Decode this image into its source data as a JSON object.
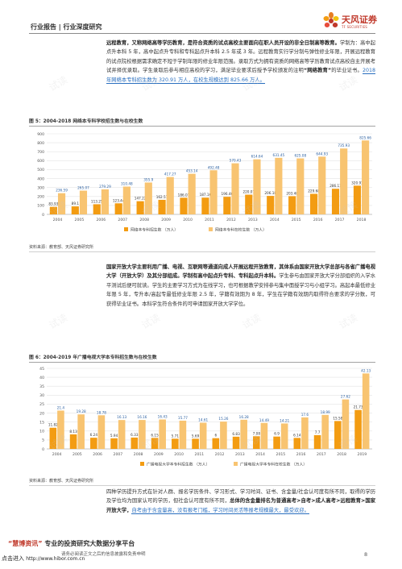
{
  "header": {
    "category": "行业报告 | 行业深度研究",
    "logo_name": "天风证券",
    "logo_sub": "TF SECURITIES",
    "brand_color": "#c0392b"
  },
  "para1": {
    "bold_intro": "远程教育，又称网络高等学历教育，是符合资质的试点高校主要面向在职人员开设的非全日制高等教育。",
    "body": "学制为：高中起点升本科 5 年，高中起点升专科和专科起点升本科 2.5 年或 3 年。远程教育实行学分制与弹性修业年限，开展远程教育的试点院校根据需求确定不短于学制年限的修业年限范围。录取方式为拥有资质的网络高等学历教育试点高校自主开展考试并择优录取。学生录取后参与相应高校的学习，满足毕业要求后授予学校颁发的注明",
    "quote": "“网络教育”",
    "body2": "的毕业证书。",
    "highlight": "2018 年网络本专科招生数为 320.91 万人，在校生规模达到 825.66 万人。"
  },
  "fig5": {
    "title": "图 5：2004-2018 网络本专科学校招生数与在校生数",
    "source": "资料来源：教育部、天风证券研究所"
  },
  "para2": {
    "bold_intro": "国家开放大学主要利用广播、电视、互联网等通道向成人开展远程开放教育，其体系由国家开放大学总部与各省广播电视大学（开放大学）及其分部组成。",
    "bold_mid": "学制有高中起点升专科、专科起点升本科。",
    "body": "学生参与由国家开放大学分部组织的入学水平测试后便可就读。学生的主要学习方式为在线学习，也可根据教学安排参与集中面授学习与小组学习。高起本最低修业年限 5 年，专升本/高起专最低修业年限 2.5 年，学籍有效期为 8 年，学生在学籍有效期内取得符合要求的学分数，可获得毕业证书。本科学生符合条件的可申请国家开放大学学位。"
  },
  "fig6": {
    "title": "图 6：2004-2019 年广播电视大学本专科招生数与在校生数",
    "source": "资料来源：教育部、天风证券研究所"
  },
  "para3": {
    "body": "四种学历提升方式在针对人群、报名学历条件、学习形式、学习时间、证书、含金量/社会认可度有所不同，取得的学历及学位均为国家认可的学历，但社会认可度有所不同，",
    "bold": "总体的含金量排名为普通高考>自考>成人高考>远程教育>国家开放大学，",
    "highlight": "自考由于含金量高，没有报考门槛，学习时间灵活等报考规模最大，最受欢迎。"
  },
  "footer": {
    "brand_quote": "“慧博资讯”",
    "slogan": "专业的投资研究大数据分享平台",
    "entry": "点击进入",
    "url": "http://www.hibor.com.cn",
    "note": "请务必阅读正文之后的信息披露和免责申明",
    "page": "8"
  },
  "watermark": "试读",
  "chart_data": [
    {
      "type": "bar",
      "title": "图 5：2004-2018 网络本专科学校招生数与在校生数",
      "categories": [
        "2004",
        "2005",
        "2006",
        "2007",
        "2008",
        "2009",
        "2010",
        "2011",
        "2012",
        "2013",
        "2014",
        "2015",
        "2016",
        "2017",
        "2018"
      ],
      "series": [
        {
          "name": "网络本专科招生数 （万人）",
          "color": "#f39c12",
          "values": [
            83.93,
            89.1,
            113.25,
            123.44,
            147.22,
            162.57,
            186.07,
            187.16,
            196.46,
            220.07,
            206.18,
            203.48,
            229.68,
            286.11,
            320.91
          ]
        },
        {
          "name": "网络本专科在校生数 （万人）",
          "color": "#f8c471",
          "values": [
            236.59,
            265.07,
            279.29,
            310.48,
            355.9,
            417.27,
            453.14,
            492.48,
            570.43,
            614.64,
            631.45,
            625.08,
            644.93,
            735.93,
            825.66
          ]
        }
      ],
      "ylim": [
        0,
        900
      ],
      "yticks": [
        0,
        100,
        200,
        300,
        400,
        500,
        600,
        700,
        800,
        900
      ],
      "grid": true,
      "legend": "bottom"
    },
    {
      "type": "bar",
      "title": "图 6：2004-2019 年广播电视大学本专科招生数与在校生数",
      "categories": [
        "2004",
        "2005",
        "2006",
        "2007",
        "2008",
        "2009",
        "2010",
        "2011",
        "2012",
        "2013",
        "2014",
        "2015",
        "2016",
        "2017",
        "2018",
        "2019"
      ],
      "series": [
        {
          "name": "广播电视大学本专科招生数 （万人）",
          "color": "#f39c12",
          "values": [
            11.82,
            8.13,
            6.24,
            5.94,
            6.33,
            6.15,
            5.71,
            5.69,
            6.0,
            6.83,
            7.08,
            6.9,
            6.14,
            7.7,
            15.58,
            21.73
          ]
        },
        {
          "name": "广播电视大学本专科在校生数 （万人）",
          "color": "#f8c471",
          "values": [
            21.4,
            19.28,
            18.78,
            16.13,
            16.16,
            16.43,
            15.77,
            14.61,
            15.26,
            16.28,
            14.49,
            14.21,
            17.6,
            18.99,
            27.62,
            42.13
          ]
        }
      ],
      "ylim": [
        0,
        45
      ],
      "yticks": [
        0,
        5,
        10,
        15,
        20,
        25,
        30,
        35,
        40,
        45
      ],
      "grid": true,
      "legend": "bottom"
    }
  ]
}
